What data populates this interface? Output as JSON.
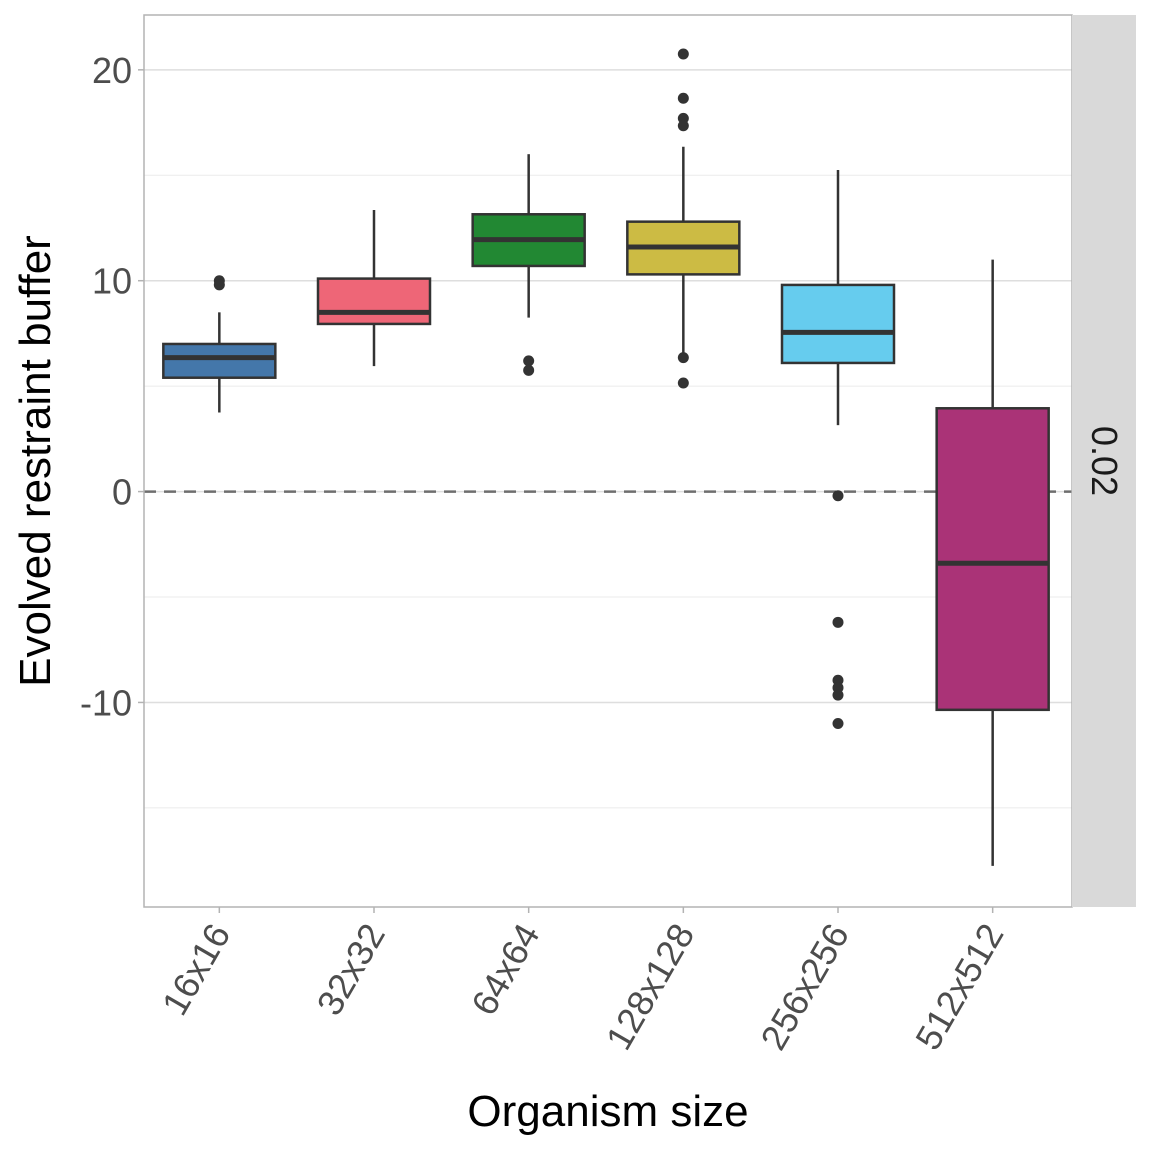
{
  "chart_data": {
    "type": "boxplot",
    "title": "",
    "xlabel": "Organism size",
    "ylabel": "Evolved restraint buffer",
    "facet_label": "0.02",
    "ylim": [
      -19.7,
      22.6
    ],
    "yticks": [
      -10,
      0,
      10,
      20
    ],
    "ytick_labels": [
      "-10",
      "0",
      "10",
      "20"
    ],
    "minor_gridlines": [
      -15,
      -5,
      5,
      15
    ],
    "reference_line": {
      "y": 0,
      "style": "dashed"
    },
    "grid": true,
    "legend": "none",
    "categories": [
      "16x16",
      "32x32",
      "64x64",
      "128x128",
      "256x256",
      "512x512"
    ],
    "series": [
      {
        "name": "16x16",
        "color": "#4477AA",
        "whisker_low": 3.75,
        "q1": 5.4,
        "median": 6.35,
        "q3": 7.0,
        "whisker_high": 8.5,
        "outliers": [
          10.0,
          9.8
        ]
      },
      {
        "name": "32x32",
        "color": "#EE6677",
        "whisker_low": 5.95,
        "q1": 7.95,
        "median": 8.5,
        "q3": 10.1,
        "whisker_high": 13.35,
        "outliers": []
      },
      {
        "name": "64x64",
        "color": "#228833",
        "whisker_low": 8.25,
        "q1": 10.7,
        "median": 11.95,
        "q3": 13.15,
        "whisker_high": 16.0,
        "outliers": [
          6.2,
          5.75
        ]
      },
      {
        "name": "128x128",
        "color": "#CCBB44",
        "whisker_low": 6.35,
        "q1": 10.3,
        "median": 11.6,
        "q3": 12.8,
        "whisker_high": 16.35,
        "outliers": [
          20.75,
          18.65,
          17.7,
          17.35,
          6.35,
          5.15
        ]
      },
      {
        "name": "256x256",
        "color": "#66CCEE",
        "whisker_low": 3.15,
        "q1": 6.1,
        "median": 7.55,
        "q3": 9.8,
        "whisker_high": 15.25,
        "outliers": [
          -0.2,
          -6.2,
          -8.95,
          -9.3,
          -9.65,
          -11.0
        ]
      },
      {
        "name": "512x512",
        "color": "#AA3377",
        "whisker_low": -17.75,
        "q1": -10.35,
        "median": -3.4,
        "q3": 3.95,
        "whisker_high": 11.0,
        "outliers": []
      }
    ]
  }
}
